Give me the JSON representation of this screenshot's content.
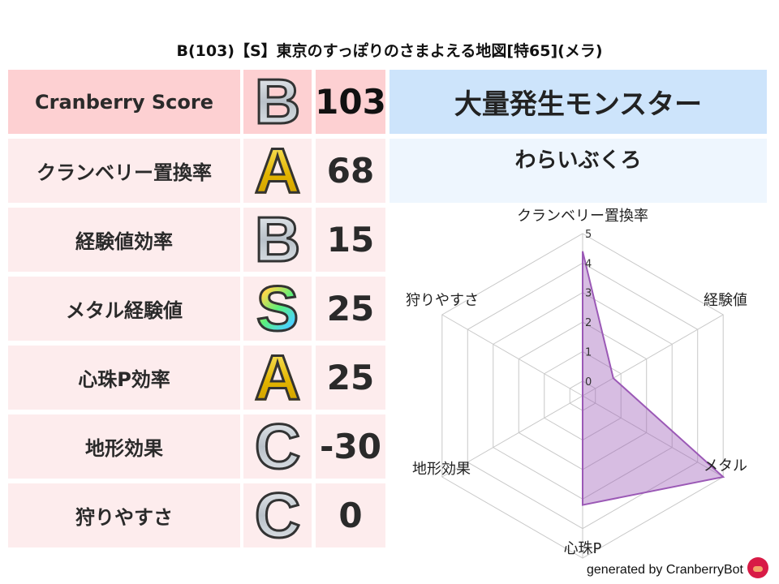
{
  "title": "B(103)【S】東京のすっぽりのさまよえる地図[特65](メラ)",
  "rows": [
    {
      "label": "Cranberry Score",
      "grade": "B",
      "value": "103"
    },
    {
      "label": "クランベリー置換率",
      "grade": "A",
      "value": "68"
    },
    {
      "label": "経験値効率",
      "grade": "B",
      "value": "15"
    },
    {
      "label": "メタル経験値",
      "grade": "S",
      "value": "25"
    },
    {
      "label": "心珠P効率",
      "grade": "A",
      "value": "25"
    },
    {
      "label": "地形効果",
      "grade": "C",
      "value": "-30"
    },
    {
      "label": "狩りやすさ",
      "grade": "C",
      "value": "0"
    }
  ],
  "event": {
    "title": "大量発生モンスター",
    "monster": "わらいぶくろ"
  },
  "colors": {
    "score_row": "#fdd0d2",
    "row": "#fdeced",
    "event_header": "#cde4fb",
    "event_name": "#eef6fe",
    "series": "#9b59b6"
  },
  "chart_data": {
    "type": "radar",
    "axes": [
      "クランベリー置換率",
      "経験値",
      "メタル",
      "心珠P",
      "地形効果",
      "狩りやすさ"
    ],
    "values": [
      4.4,
      0.7,
      5,
      3.2,
      -0.5,
      -0.5
    ],
    "ticks": [
      "0",
      "1",
      "2",
      "3",
      "4",
      "5"
    ],
    "range": [
      -0.5,
      5
    ]
  },
  "footer": {
    "text": "generated by CranberryBot",
    "icon": "cranberry-bot-icon"
  }
}
